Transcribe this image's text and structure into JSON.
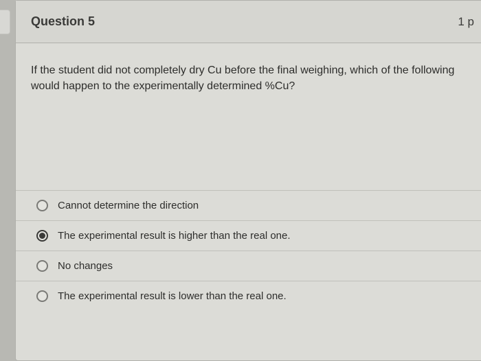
{
  "header": {
    "title": "Question 5",
    "points": "1 p"
  },
  "prompt": "If the student did not completely dry Cu before the final weighing, which of the following would happen to the experimentally determined %Cu?",
  "answers": [
    {
      "label": "Cannot determine the direction",
      "selected": false
    },
    {
      "label": "The experimental result is higher than the real one.",
      "selected": true
    },
    {
      "label": "No changes",
      "selected": false
    },
    {
      "label": "The experimental result is lower than the real one.",
      "selected": false
    }
  ],
  "colors": {
    "page_bg": "#b8b8b3",
    "card_bg": "#dcdcd7",
    "header_bg": "#d6d6d1",
    "border": "#b0b0ab",
    "row_border": "#c0c0ba",
    "text_primary": "#2d2d2b",
    "text_strong": "#3a3a38",
    "radio_border": "#7a7a76",
    "radio_fill": "#3a3a38"
  }
}
